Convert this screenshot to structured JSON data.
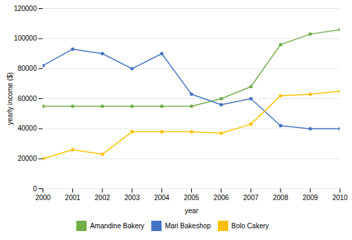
{
  "chart_data": {
    "type": "line",
    "xlabel": "year",
    "ylabel": "yearly income ($)",
    "x": [
      2000,
      2001,
      2002,
      2003,
      2004,
      2005,
      2006,
      2007,
      2008,
      2009,
      2010
    ],
    "xlim": [
      2000,
      2010
    ],
    "xticks": [
      2000,
      2001,
      2002,
      2003,
      2004,
      2005,
      2006,
      2007,
      2008,
      2009,
      2010
    ],
    "ylim": [
      0,
      120000
    ],
    "yticks": [
      0,
      20000,
      40000,
      60000,
      80000,
      100000,
      120000
    ],
    "grid": true,
    "legend": "bottom",
    "marker": "circle",
    "series": [
      {
        "name": "Amandine Bakery",
        "color": "#70AD47",
        "values": [
          55000,
          55000,
          55000,
          55000,
          55000,
          55000,
          60000,
          68000,
          96000,
          103000,
          106000
        ]
      },
      {
        "name": "Mari Bakeshop",
        "color": "#4472C4",
        "values": [
          82000,
          93000,
          90000,
          80000,
          90000,
          63000,
          56000,
          60000,
          42000,
          40000,
          40000
        ]
      },
      {
        "name": "Bolo Cakery",
        "color": "#FFC000",
        "values": [
          20000,
          26000,
          23000,
          38000,
          38000,
          38000,
          37000,
          43000,
          62000,
          63000,
          65000
        ]
      }
    ]
  }
}
